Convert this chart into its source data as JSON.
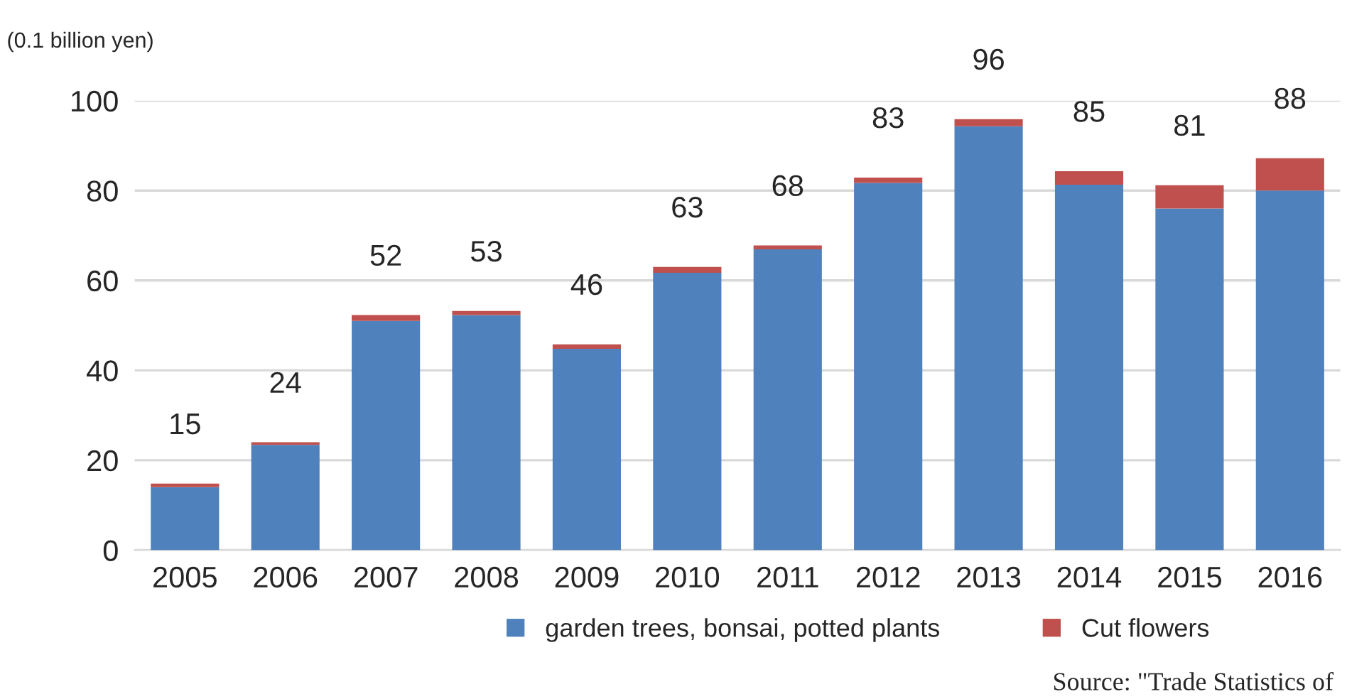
{
  "chart_data": {
    "type": "bar",
    "stacked": true,
    "ylabel": "(0.1 billion yen)",
    "categories": [
      "2005",
      "2006",
      "2007",
      "2008",
      "2009",
      "2010",
      "2011",
      "2012",
      "2013",
      "2014",
      "2015",
      "2016"
    ],
    "series": [
      {
        "name": "garden trees, bonsai, potted plants",
        "color": "#4f81bd",
        "values": [
          14,
          23.4,
          51,
          52.3,
          44.8,
          61.7,
          66.9,
          81.7,
          94.3,
          81.3,
          76,
          80
        ]
      },
      {
        "name": "Cut flowers",
        "color": "#c0504d",
        "values": [
          0.8,
          0.6,
          1.3,
          0.9,
          1,
          1.3,
          0.9,
          1.2,
          1.6,
          3,
          5.2,
          7.2
        ]
      }
    ],
    "totals": [
      "15",
      "24",
      "52",
      "53",
      "46",
      "63",
      "68",
      "83",
      "96",
      "85",
      "81",
      "88"
    ],
    "ylim": [
      0,
      100
    ],
    "yticks": [
      0,
      20,
      40,
      60,
      80,
      100
    ],
    "grid": "y",
    "legend": "bottom",
    "annotations": [
      "Source: \"Trade Statistics of"
    ]
  }
}
